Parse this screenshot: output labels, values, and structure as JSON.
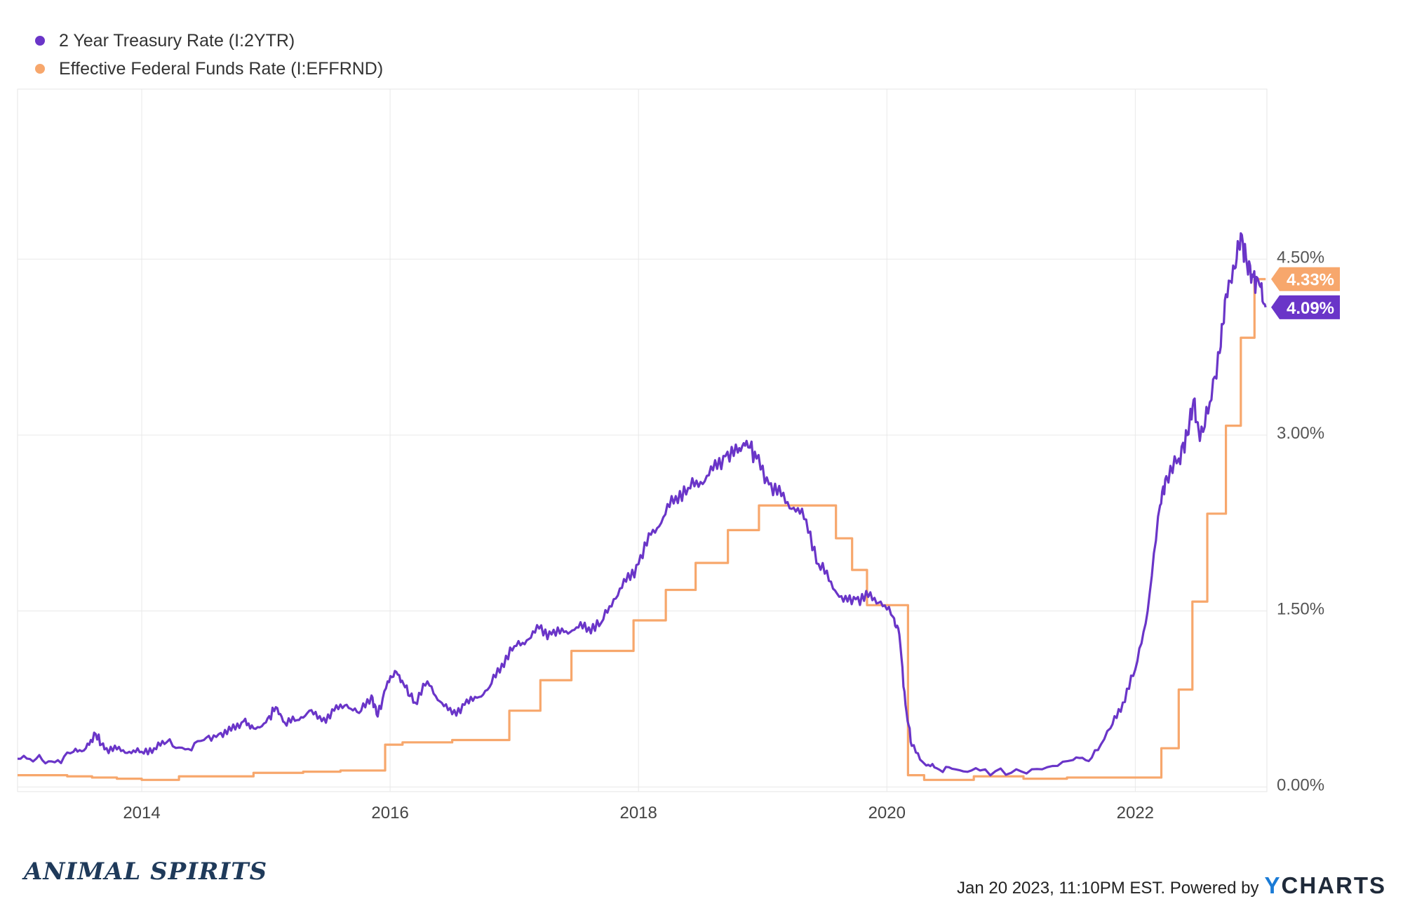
{
  "legend": [
    {
      "label": "2 Year Treasury Rate (I:2YTR)",
      "color": "#6a35c8"
    },
    {
      "label": "Effective Federal Funds Rate (I:EFFRND)",
      "color": "#f7a76c"
    }
  ],
  "footer": {
    "brand": "ANIMAL SPIRITS",
    "timestamp": "Jan 20 2023, 11:10PM EST. Powered by",
    "logo_y": "Y",
    "logo_rest": "CHARTS"
  },
  "chart_data": {
    "type": "line",
    "title": "",
    "xlabel": "",
    "ylabel": "",
    "xlim": [
      2013.0,
      2023.06
    ],
    "ylim": [
      -0.04,
      5.95
    ],
    "x_ticks": [
      {
        "value": 2014,
        "label": "2014"
      },
      {
        "value": 2016,
        "label": "2016"
      },
      {
        "value": 2018,
        "label": "2018"
      },
      {
        "value": 2020,
        "label": "2020"
      },
      {
        "value": 2022,
        "label": "2022"
      }
    ],
    "y_ticks": [
      {
        "value": 0,
        "label": "0.00%"
      },
      {
        "value": 1.5,
        "label": "1.50%"
      },
      {
        "value": 3.0,
        "label": "3.00%"
      },
      {
        "value": 4.5,
        "label": "4.50%"
      }
    ],
    "grid": true,
    "legend_position": "top-left",
    "series": [
      {
        "name": "2 Year Treasury Rate (I:2YTR)",
        "color": "#6a35c8",
        "last_label": "4.09%",
        "points": [
          [
            2013.0,
            0.24
          ],
          [
            2013.15,
            0.24
          ],
          [
            2013.3,
            0.21
          ],
          [
            2013.45,
            0.3
          ],
          [
            2013.55,
            0.33
          ],
          [
            2013.63,
            0.45
          ],
          [
            2013.7,
            0.32
          ],
          [
            2013.8,
            0.32
          ],
          [
            2013.9,
            0.3
          ],
          [
            2014.0,
            0.3
          ],
          [
            2014.1,
            0.33
          ],
          [
            2014.2,
            0.38
          ],
          [
            2014.35,
            0.32
          ],
          [
            2014.5,
            0.4
          ],
          [
            2014.62,
            0.45
          ],
          [
            2014.72,
            0.48
          ],
          [
            2014.82,
            0.56
          ],
          [
            2014.9,
            0.5
          ],
          [
            2015.0,
            0.55
          ],
          [
            2015.08,
            0.68
          ],
          [
            2015.15,
            0.55
          ],
          [
            2015.25,
            0.57
          ],
          [
            2015.35,
            0.65
          ],
          [
            2015.45,
            0.56
          ],
          [
            2015.55,
            0.65
          ],
          [
            2015.65,
            0.7
          ],
          [
            2015.75,
            0.63
          ],
          [
            2015.85,
            0.78
          ],
          [
            2015.9,
            0.6
          ],
          [
            2015.98,
            0.9
          ],
          [
            2016.05,
            0.98
          ],
          [
            2016.12,
            0.85
          ],
          [
            2016.2,
            0.72
          ],
          [
            2016.3,
            0.9
          ],
          [
            2016.4,
            0.73
          ],
          [
            2016.5,
            0.62
          ],
          [
            2016.6,
            0.7
          ],
          [
            2016.7,
            0.76
          ],
          [
            2016.8,
            0.85
          ],
          [
            2016.9,
            1.05
          ],
          [
            2017.0,
            1.2
          ],
          [
            2017.1,
            1.25
          ],
          [
            2017.2,
            1.35
          ],
          [
            2017.3,
            1.3
          ],
          [
            2017.4,
            1.32
          ],
          [
            2017.5,
            1.36
          ],
          [
            2017.6,
            1.36
          ],
          [
            2017.7,
            1.4
          ],
          [
            2017.8,
            1.6
          ],
          [
            2017.9,
            1.75
          ],
          [
            2018.0,
            1.9
          ],
          [
            2018.1,
            2.15
          ],
          [
            2018.2,
            2.3
          ],
          [
            2018.3,
            2.48
          ],
          [
            2018.4,
            2.55
          ],
          [
            2018.5,
            2.6
          ],
          [
            2018.6,
            2.7
          ],
          [
            2018.7,
            2.82
          ],
          [
            2018.8,
            2.85
          ],
          [
            2018.87,
            2.95
          ],
          [
            2018.95,
            2.8
          ],
          [
            2019.05,
            2.58
          ],
          [
            2019.15,
            2.48
          ],
          [
            2019.25,
            2.38
          ],
          [
            2019.35,
            2.28
          ],
          [
            2019.45,
            1.9
          ],
          [
            2019.55,
            1.75
          ],
          [
            2019.65,
            1.58
          ],
          [
            2019.75,
            1.6
          ],
          [
            2019.85,
            1.62
          ],
          [
            2019.95,
            1.58
          ],
          [
            2020.05,
            1.45
          ],
          [
            2020.1,
            1.3
          ],
          [
            2020.15,
            0.7
          ],
          [
            2020.2,
            0.35
          ],
          [
            2020.3,
            0.2
          ],
          [
            2020.4,
            0.16
          ],
          [
            2020.55,
            0.15
          ],
          [
            2020.75,
            0.14
          ],
          [
            2021.0,
            0.12
          ],
          [
            2021.25,
            0.15
          ],
          [
            2021.5,
            0.23
          ],
          [
            2021.65,
            0.25
          ],
          [
            2021.8,
            0.5
          ],
          [
            2021.9,
            0.72
          ],
          [
            2022.0,
            1.0
          ],
          [
            2022.1,
            1.5
          ],
          [
            2022.2,
            2.4
          ],
          [
            2022.25,
            2.65
          ],
          [
            2022.35,
            2.8
          ],
          [
            2022.42,
            3.0
          ],
          [
            2022.47,
            3.3
          ],
          [
            2022.52,
            2.95
          ],
          [
            2022.6,
            3.28
          ],
          [
            2022.68,
            3.7
          ],
          [
            2022.73,
            4.2
          ],
          [
            2022.8,
            4.42
          ],
          [
            2022.85,
            4.72
          ],
          [
            2022.9,
            4.45
          ],
          [
            2022.95,
            4.35
          ],
          [
            2023.0,
            4.28
          ],
          [
            2023.05,
            4.09
          ]
        ]
      },
      {
        "name": "Effective Federal Funds Rate (I:EFFRND)",
        "color": "#f7a76c",
        "last_label": "4.33%",
        "steps": [
          [
            2013.0,
            0.1
          ],
          [
            2013.4,
            0.09
          ],
          [
            2013.6,
            0.08
          ],
          [
            2013.8,
            0.07
          ],
          [
            2014.0,
            0.06
          ],
          [
            2014.3,
            0.09
          ],
          [
            2014.6,
            0.09
          ],
          [
            2014.9,
            0.12
          ],
          [
            2015.3,
            0.13
          ],
          [
            2015.6,
            0.14
          ],
          [
            2015.96,
            0.36
          ],
          [
            2016.1,
            0.38
          ],
          [
            2016.5,
            0.4
          ],
          [
            2016.96,
            0.65
          ],
          [
            2017.21,
            0.91
          ],
          [
            2017.46,
            1.16
          ],
          [
            2017.96,
            1.42
          ],
          [
            2018.22,
            1.68
          ],
          [
            2018.46,
            1.91
          ],
          [
            2018.72,
            2.19
          ],
          [
            2018.97,
            2.4
          ],
          [
            2019.59,
            2.12
          ],
          [
            2019.72,
            1.85
          ],
          [
            2019.84,
            1.55
          ],
          [
            2020.17,
            0.1
          ],
          [
            2020.3,
            0.06
          ],
          [
            2020.7,
            0.09
          ],
          [
            2021.1,
            0.07
          ],
          [
            2021.45,
            0.08
          ],
          [
            2022.21,
            0.33
          ],
          [
            2022.35,
            0.83
          ],
          [
            2022.46,
            1.58
          ],
          [
            2022.58,
            2.33
          ],
          [
            2022.73,
            3.08
          ],
          [
            2022.85,
            3.83
          ],
          [
            2022.96,
            4.33
          ],
          [
            2023.05,
            4.33
          ]
        ]
      }
    ]
  }
}
